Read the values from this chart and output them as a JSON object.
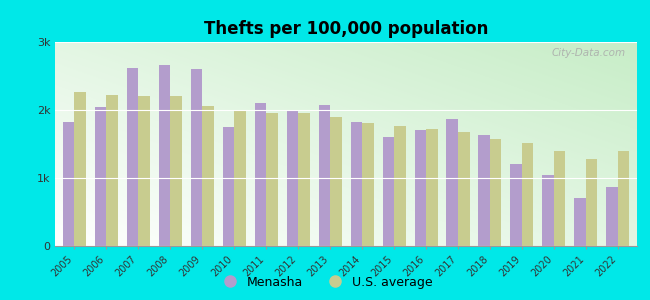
{
  "title": "Thefts per 100,000 population",
  "years": [
    2005,
    2006,
    2007,
    2008,
    2009,
    2010,
    2011,
    2012,
    2013,
    2014,
    2015,
    2016,
    2017,
    2018,
    2019,
    2020,
    2021,
    2022
  ],
  "menasha": [
    1820,
    2050,
    2620,
    2660,
    2610,
    1750,
    2100,
    2000,
    2080,
    1820,
    1600,
    1700,
    1870,
    1630,
    1200,
    1040,
    700,
    870
  ],
  "us_avg": [
    2270,
    2220,
    2200,
    2200,
    2060,
    1980,
    1960,
    1960,
    1890,
    1810,
    1760,
    1720,
    1670,
    1580,
    1520,
    1390,
    1280,
    1390
  ],
  "menasha_color": "#b39dcc",
  "us_avg_color": "#c8cc8f",
  "background_left_color": "#c8eec8",
  "background_right_color": "#f0f8f0",
  "outer_background": "#00e8e8",
  "ylim": [
    0,
    3000
  ],
  "yticks": [
    0,
    1000,
    2000,
    3000
  ],
  "ytick_labels": [
    "0",
    "1k",
    "2k",
    "3k"
  ],
  "legend_menasha": "Menasha",
  "legend_us": "U.S. average",
  "watermark": "City-Data.com"
}
